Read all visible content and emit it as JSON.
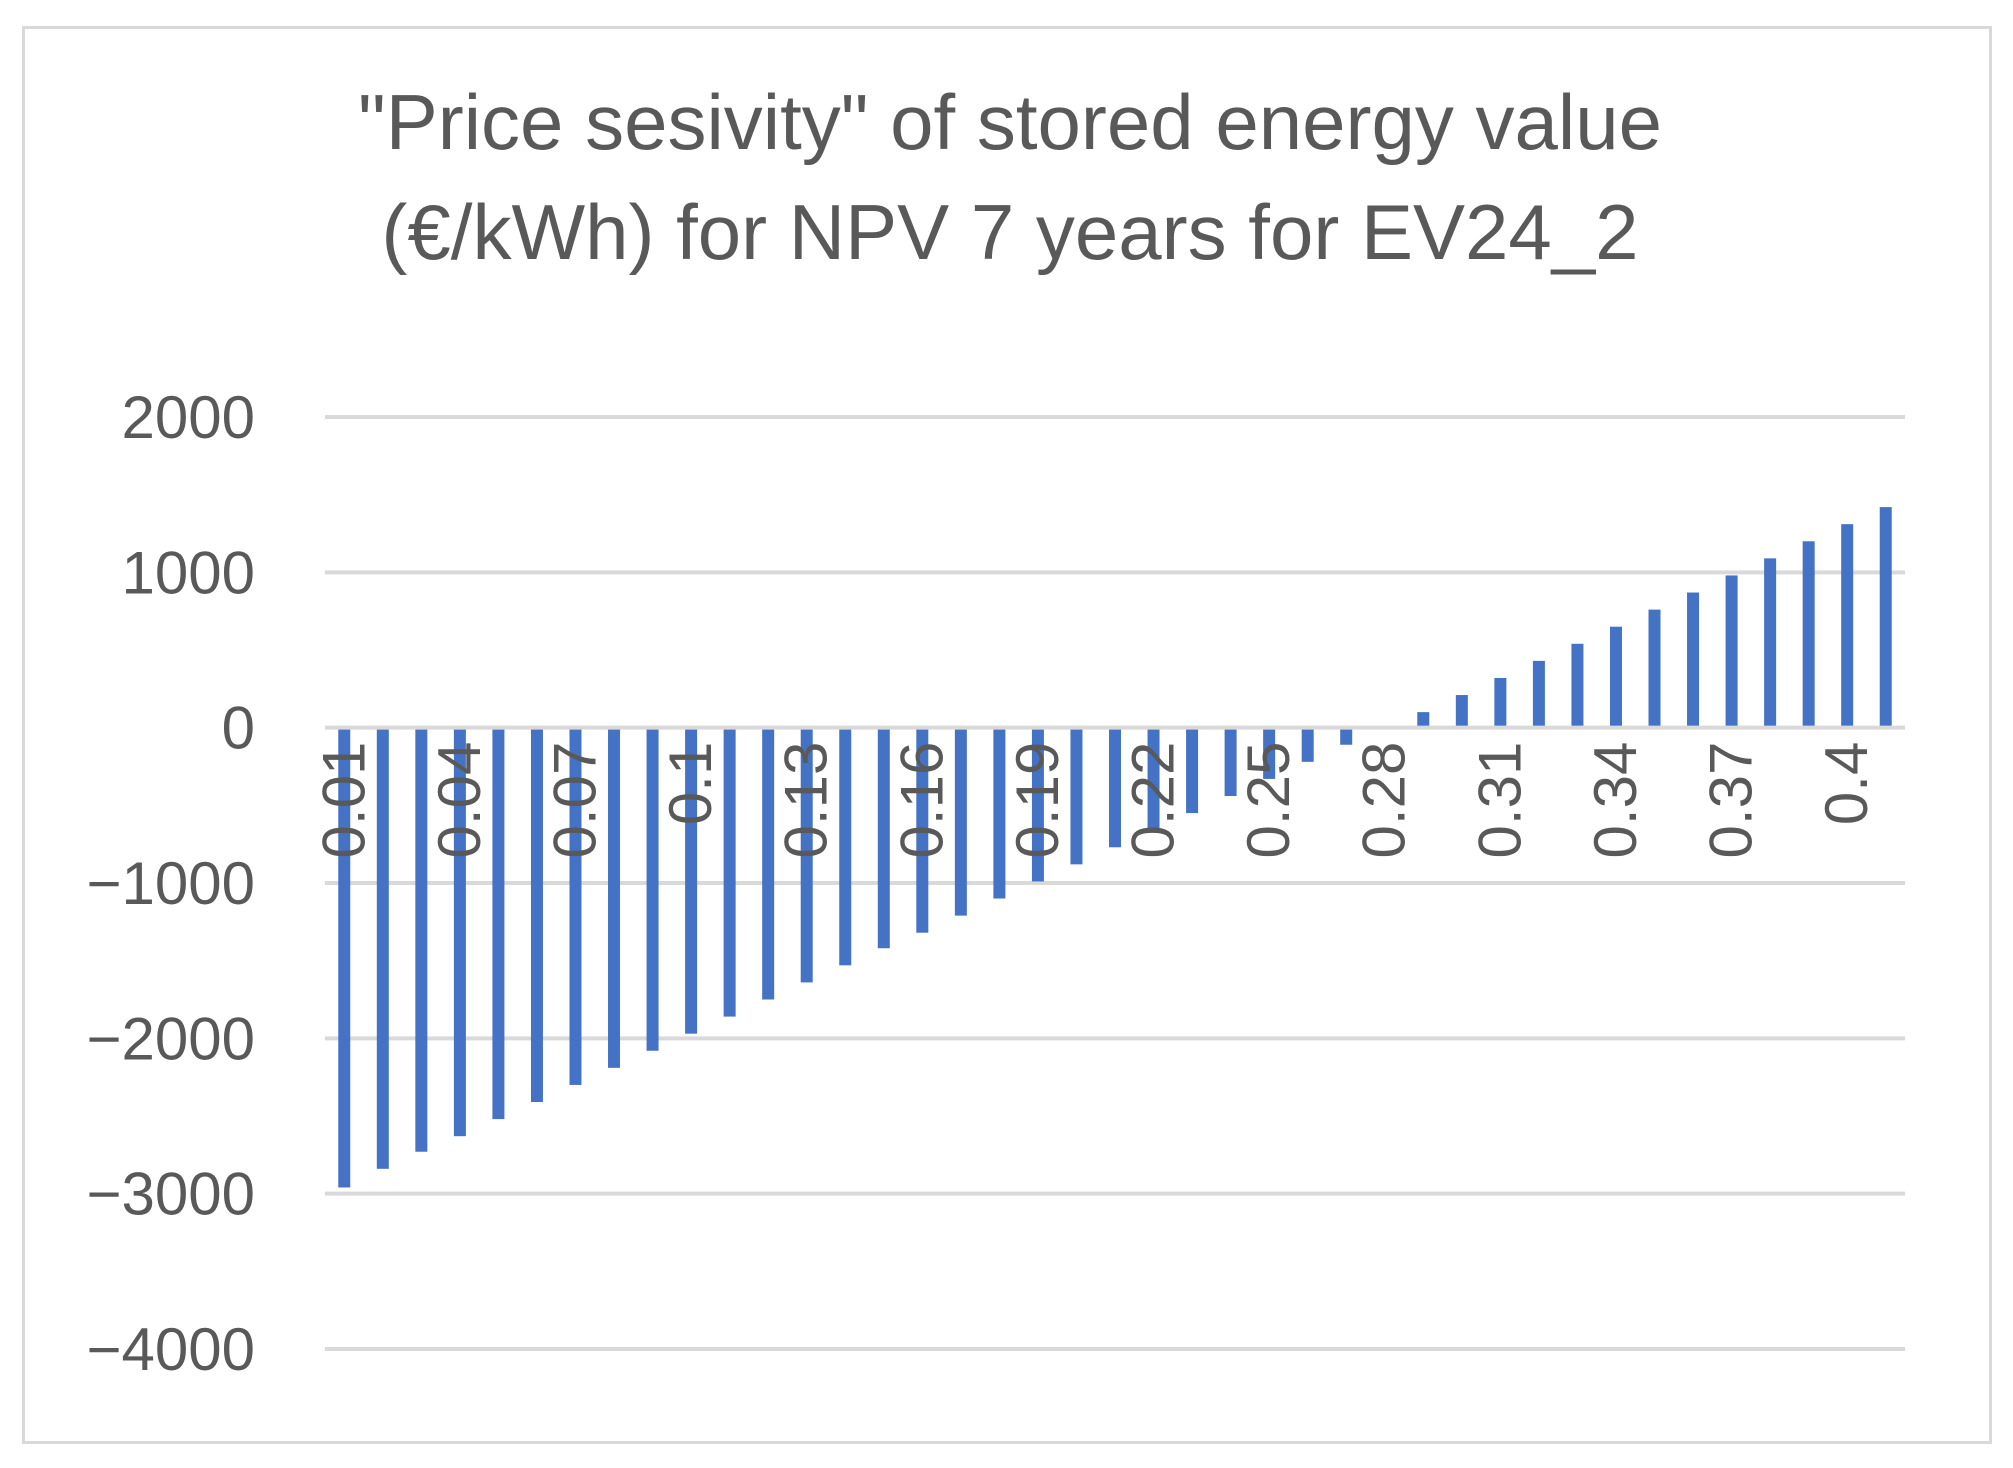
{
  "chart_data": {
    "type": "bar",
    "title_lines": [
      "\"Price sesivity\" of stored energy value",
      "(€/kWh) for NPV 7 years for EV24_2"
    ],
    "xlabel": "",
    "ylabel": "",
    "ylim": [
      -4000,
      2000
    ],
    "yticks": [
      2000,
      1000,
      0,
      -1000,
      -2000,
      -3000,
      -4000
    ],
    "ytick_labels": [
      "2000",
      "1000",
      "0",
      "−1000",
      "−2000",
      "−3000",
      "−4000"
    ],
    "grid": true,
    "legend": "none",
    "categories": [
      "0.01",
      "0.02",
      "0.03",
      "0.04",
      "0.05",
      "0.06",
      "0.07",
      "0.08",
      "0.09",
      "0.1",
      "0.11",
      "0.12",
      "0.13",
      "0.14",
      "0.15",
      "0.16",
      "0.17",
      "0.18",
      "0.19",
      "0.2",
      "0.21",
      "0.22",
      "0.23",
      "0.24",
      "0.25",
      "0.26",
      "0.27",
      "0.28",
      "0.29",
      "0.3",
      "0.31",
      "0.32",
      "0.33",
      "0.34",
      "0.35",
      "0.36",
      "0.37",
      "0.38",
      "0.39",
      "0.4",
      "0.41"
    ],
    "shown_category_labels": [
      "0.01",
      "0.04",
      "0.07",
      "0.1",
      "0.13",
      "0.16",
      "0.19",
      "0.22",
      "0.25",
      "0.28",
      "0.31",
      "0.34",
      "0.37",
      "0.4"
    ],
    "values": [
      -2960,
      -2840,
      -2730,
      -2630,
      -2520,
      -2410,
      -2300,
      -2190,
      -2080,
      -1970,
      -1860,
      -1750,
      -1640,
      -1530,
      -1420,
      -1320,
      -1210,
      -1100,
      -990,
      -880,
      -770,
      -660,
      -550,
      -440,
      -330,
      -220,
      -110,
      0,
      100,
      210,
      320,
      430,
      540,
      650,
      760,
      870,
      980,
      1090,
      1200,
      1310,
      1420
    ],
    "series_color": "#4472c4"
  }
}
